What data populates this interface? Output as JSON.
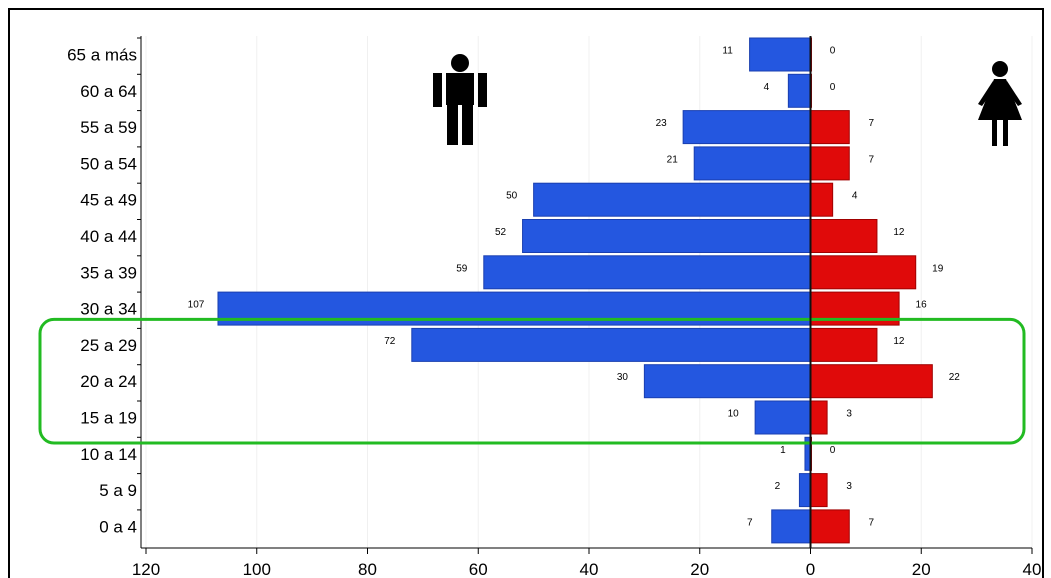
{
  "chart_data": {
    "type": "bar",
    "orientation": "horizontal-population-pyramid",
    "categories": [
      "65 a más",
      "60 a 64",
      "55 a 59",
      "50 a 54",
      "45 a 49",
      "40 a 44",
      "35 a 39",
      "30 a 34",
      "25 a 29",
      "20 a 24",
      "15 a 19",
      "10 a 14",
      "5 a 9",
      "0 a 4"
    ],
    "series": [
      {
        "values": [
          11,
          4,
          23,
          21,
          50,
          52,
          59,
          107,
          72,
          30,
          10,
          1,
          2,
          7
        ],
        "color": "#2457e0"
      },
      {
        "values": [
          0,
          0,
          7,
          7,
          4,
          12,
          19,
          16,
          12,
          22,
          3,
          0,
          3,
          7
        ],
        "color": "#e00a0a"
      }
    ],
    "x_tick_labels": [
      "120",
      "100",
      "80",
      "60",
      "40",
      "20",
      "0",
      "20",
      "40"
    ],
    "xlim": [
      -120,
      40
    ],
    "highlight": {
      "categories": [
        "25 a 29",
        "20 a 24",
        "15 a 19"
      ],
      "color": "#22bb22"
    },
    "icons": {
      "left": "male-icon",
      "right": "female-icon"
    },
    "title": "",
    "xlabel": "",
    "ylabel": ""
  }
}
